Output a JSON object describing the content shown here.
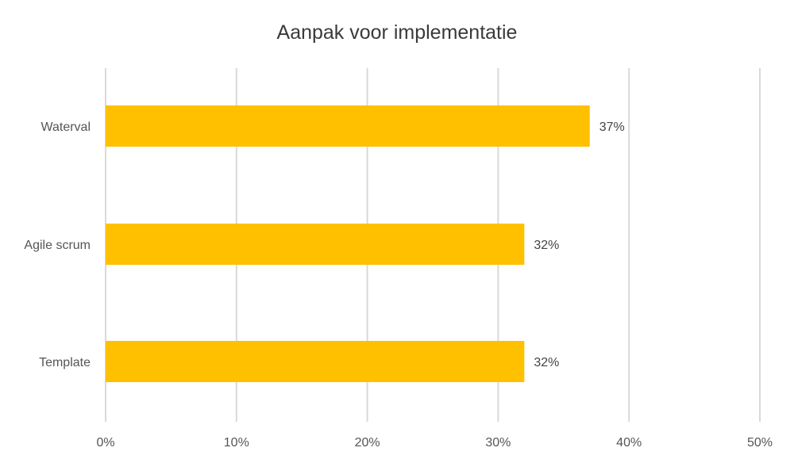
{
  "chart_data": {
    "type": "bar",
    "orientation": "horizontal",
    "title": "Aanpak voor implementatie",
    "categories": [
      "Waterval",
      "Agile scrum",
      "Template"
    ],
    "values": [
      37,
      32,
      32
    ],
    "data_labels": [
      "37%",
      "32%",
      "32%"
    ],
    "x_ticks": [
      "0%",
      "10%",
      "20%",
      "30%",
      "40%",
      "50%"
    ],
    "xlim": [
      0,
      50
    ],
    "xlabel": "",
    "ylabel": "",
    "grid": true,
    "legend": "none",
    "bar_color": "#FFC000"
  }
}
